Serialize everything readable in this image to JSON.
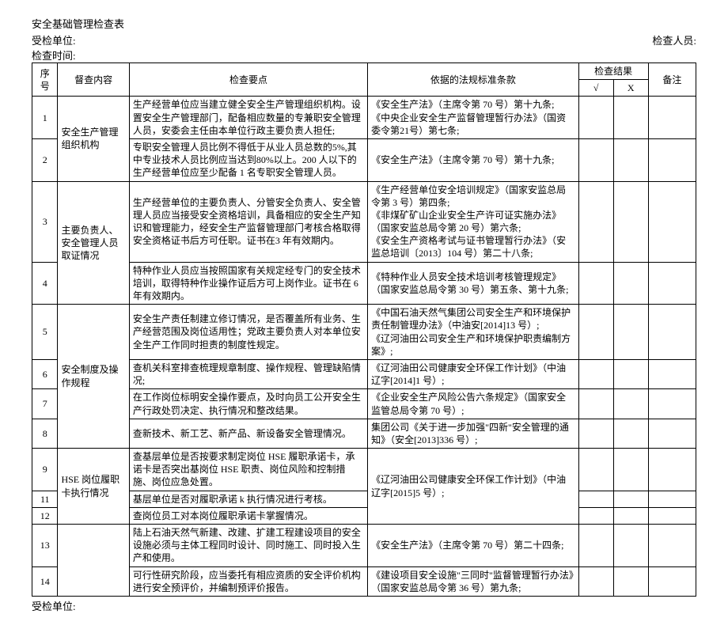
{
  "title": "安全基础管理检查表",
  "header": {
    "unit_label": "受检单位:",
    "inspector_label": "检查人员:",
    "time_label": "检查时间:"
  },
  "columns": {
    "num": "序号",
    "category": "督查内容",
    "point": "检查要点",
    "basis": "依据的法规标准条款",
    "result": "检查结果",
    "check_yes": "√",
    "check_no": "X",
    "remark": "备注"
  },
  "groups": [
    {
      "category": "安全生产管理组织机构",
      "rows": [
        {
          "num": "1",
          "point": "生产经营单位应当建立健全安全生产管理组织机构。设置安全生产管理部门，配备相应数量的专兼职安全管理人员，安委会主任由本单位行政主要负责人担任;",
          "basis": "《安全生产法》（主席令第 70 号）第十九条;\n《中央企业安全生产监督管理暂行办法》（国资委令第21号）第七条;"
        },
        {
          "num": "2",
          "point": "专职安全管理人员比例不得低于从业人员总数的5%,其中专业技术人员比例应当达到80%以上。200 人以下的生产经营单位应至少配备 1 名专职安全管理人员。",
          "basis": "《安全生产法》（主席令第 70 号）第十九条;"
        }
      ]
    },
    {
      "category": "主要负责人、安全管理人员取证情况",
      "rows": [
        {
          "num": "3",
          "point": "生产经营单位的主要负责人、分管安全负责人、安全管理人员应当接受安全资格培训，具备相应的安全生产知识和管理能力，经安全生产监督管理部门考核合格取得安全资格证书后方可任职。证书在3 年有效期内。",
          "basis": "《生产经营单位安全培训规定》（国家安监总局令第 3 号）第四条;\n《非煤矿矿山企业安全生产许可证实施办法》（国家安监总局令第 20 号）第六条;\n《安全生产资格考试与证书管理暂行办法》（安监总培训〔2013〕104 号）第二十八条;"
        },
        {
          "num": "4",
          "point": "特种作业人员应当按照国家有关规定经专门的安全技术培训，取得特种作业操作证后方可上岗作业。证书在 6 年有效期内。",
          "basis": "《特种作业人员安全技术培训考核管理规定》（国家安监总局令第 30 号）第五条、第十九条;"
        }
      ]
    },
    {
      "category": "安全制度及操作规程",
      "rows": [
        {
          "num": "5",
          "point": "安全生产责任制建立修订情况，是否覆盖所有业务、生产经营范围及岗位适用性；党政主要负责人对本单位安全生产工作同时担责的制度性规定。",
          "basis": "《中国石油天然气集团公司安全生产和环境保护责任制管理办法》（中油安[2014]13 号）;\n《辽河油田公司安全生产和环境保护职责编制方案》;"
        },
        {
          "num": "6",
          "point": "查机关科室排查梳理规章制度、操作规程、管理缺陷情况;",
          "basis": "《辽河油田公司健康安全环保工作计划》（中油辽字[2014]1 号）;"
        },
        {
          "num": "7",
          "point": "在工作岗位标明安全操作要点，及时向员工公开安全生产行政处罚决定、执行情况和整改结果。",
          "basis": "《企业安全生产风险公告六条规定》（国家安全监管总局令第 70 号）;"
        },
        {
          "num": "8",
          "point": "查新技术、新工艺、新产品、新设备安全管理情况。",
          "basis": "集团公司《关于进一步加强\"四新\"安全管理的通知》（安全[2013]336 号）;"
        }
      ]
    },
    {
      "category": "HSE 岗位履职卡执行情况",
      "rows": [
        {
          "num": "9",
          "point": "查基层单位是否按要求制定岗位 HSE 履职承诺卡，承诺卡是否突出基岗位 HSE 职责、岗位风险和控制措施、岗位应急处置。",
          "basis": "《辽河油田公司健康安全环保工作计划》（中油辽字[2015]5 号）;",
          "basis_span": 3
        },
        {
          "num": "11",
          "point": "基层单位是否对履职承诺 k 执行情况进行考核。"
        },
        {
          "num": "12",
          "point": "查岗位员工对本岗位履职承诺卡掌握情况。"
        }
      ]
    },
    {
      "category": "",
      "rows": [
        {
          "num": "13",
          "point": "陆上石油天然气新建、改建、扩建工程建设项目的安全设施必须与主体工程同时设计、同时施工、同时投入生产和使用。",
          "basis": "《安全生产法》（主席令第 70 号）第二十四条;"
        },
        {
          "num": "14",
          "point": "可行性研究阶段，应当委托有相应资质的安全评价机构进行安全预评价，并编制预评价报告。",
          "basis": "《建设项目安全设施\"三同时\"监督管理暂行办法》（国家安监总局令第 36 号）第九条;"
        }
      ]
    }
  ],
  "footer": {
    "unit_label": "受检单位:"
  }
}
